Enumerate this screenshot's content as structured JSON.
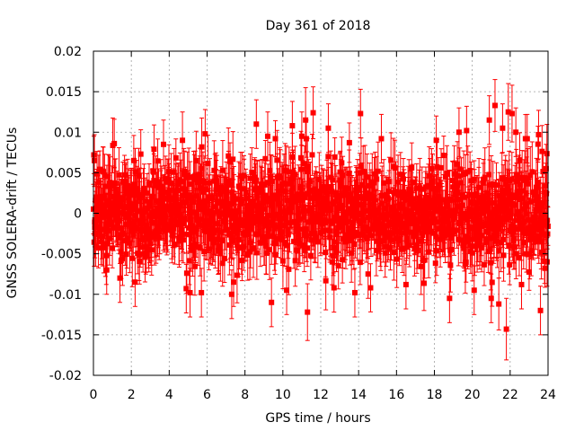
{
  "chart_data": {
    "type": "scatter",
    "title": "Day 361 of 2018",
    "xlabel": "GPS time / hours",
    "ylabel": "GNSS SOLERA-drift / TECUs",
    "xlim": [
      0,
      24
    ],
    "ylim": [
      -0.02,
      0.02
    ],
    "xticks": [
      "0",
      "2",
      "4",
      "6",
      "8",
      "10",
      "12",
      "14",
      "16",
      "18",
      "20",
      "22",
      "24"
    ],
    "yticks": [
      "0.02",
      "0.015",
      "0.01",
      "0.005",
      "0",
      "-0.005",
      "-0.01",
      "-0.015",
      "-0.02"
    ],
    "grid": true,
    "series": [
      {
        "color": "#ff0000",
        "marker": "square",
        "error_bars": true,
        "points": [
          {
            "x": 0.05,
            "y": 0.0065,
            "err": 0.0032
          },
          {
            "x": 0.08,
            "y": -0.0025,
            "err": 0.003
          },
          {
            "x": 0.15,
            "y": 0.002,
            "err": 0.003
          },
          {
            "x": 0.5,
            "y": 0.0052,
            "err": 0.003
          },
          {
            "x": 0.7,
            "y": -0.007,
            "err": 0.003
          },
          {
            "x": 1.1,
            "y": 0.0086,
            "err": 0.003
          },
          {
            "x": 1.4,
            "y": -0.008,
            "err": 0.003
          },
          {
            "x": 2.2,
            "y": -0.0085,
            "err": 0.003
          },
          {
            "x": 2.5,
            "y": 0.0073,
            "err": 0.003
          },
          {
            "x": 3.2,
            "y": 0.0079,
            "err": 0.003
          },
          {
            "x": 3.7,
            "y": 0.0085,
            "err": 0.003
          },
          {
            "x": 4.7,
            "y": 0.009,
            "err": 0.0035
          },
          {
            "x": 4.9,
            "y": -0.0093,
            "err": 0.003
          },
          {
            "x": 5.1,
            "y": -0.0098,
            "err": 0.003
          },
          {
            "x": 5.7,
            "y": -0.0098,
            "err": 0.003
          },
          {
            "x": 5.9,
            "y": 0.0098,
            "err": 0.003
          },
          {
            "x": 7.3,
            "y": -0.01,
            "err": 0.003
          },
          {
            "x": 7.4,
            "y": -0.0085,
            "err": 0.003
          },
          {
            "x": 8.6,
            "y": 0.011,
            "err": 0.003
          },
          {
            "x": 9.2,
            "y": 0.0095,
            "err": 0.003
          },
          {
            "x": 9.4,
            "y": -0.011,
            "err": 0.003
          },
          {
            "x": 10.2,
            "y": -0.0095,
            "err": 0.003
          },
          {
            "x": 10.5,
            "y": 0.0108,
            "err": 0.003
          },
          {
            "x": 11.0,
            "y": 0.0095,
            "err": 0.003
          },
          {
            "x": 11.2,
            "y": 0.0115,
            "err": 0.004
          },
          {
            "x": 11.3,
            "y": -0.0122,
            "err": 0.0035
          },
          {
            "x": 11.6,
            "y": 0.0124,
            "err": 0.0032
          },
          {
            "x": 12.4,
            "y": 0.0105,
            "err": 0.003
          },
          {
            "x": 12.7,
            "y": -0.0092,
            "err": 0.003
          },
          {
            "x": 13.8,
            "y": -0.0098,
            "err": 0.003
          },
          {
            "x": 14.1,
            "y": 0.0123,
            "err": 0.003
          },
          {
            "x": 14.5,
            "y": -0.0075,
            "err": 0.003
          },
          {
            "x": 15.2,
            "y": 0.0092,
            "err": 0.003
          },
          {
            "x": 16.5,
            "y": -0.0088,
            "err": 0.003
          },
          {
            "x": 18.1,
            "y": 0.009,
            "err": 0.003
          },
          {
            "x": 18.8,
            "y": -0.0105,
            "err": 0.003
          },
          {
            "x": 19.3,
            "y": 0.01,
            "err": 0.003
          },
          {
            "x": 19.7,
            "y": 0.0102,
            "err": 0.003
          },
          {
            "x": 20.1,
            "y": -0.0095,
            "err": 0.003
          },
          {
            "x": 20.9,
            "y": 0.0115,
            "err": 0.003
          },
          {
            "x": 21.0,
            "y": -0.0105,
            "err": 0.003
          },
          {
            "x": 21.2,
            "y": 0.0133,
            "err": 0.0032
          },
          {
            "x": 21.4,
            "y": -0.0112,
            "err": 0.0032
          },
          {
            "x": 21.6,
            "y": 0.0105,
            "err": 0.003
          },
          {
            "x": 21.8,
            "y": -0.0143,
            "err": 0.0038
          },
          {
            "x": 21.9,
            "y": 0.0125,
            "err": 0.0035
          },
          {
            "x": 22.1,
            "y": 0.0123,
            "err": 0.0035
          },
          {
            "x": 22.3,
            "y": 0.01,
            "err": 0.003
          },
          {
            "x": 22.6,
            "y": -0.0088,
            "err": 0.003
          },
          {
            "x": 22.9,
            "y": 0.0092,
            "err": 0.003
          },
          {
            "x": 23.5,
            "y": 0.0097,
            "err": 0.003
          },
          {
            "x": 23.6,
            "y": -0.012,
            "err": 0.003
          },
          {
            "x": 23.9,
            "y": 0.0055,
            "err": 0.003
          },
          {
            "x": 23.95,
            "y": -0.006,
            "err": 0.003
          }
        ]
      }
    ]
  }
}
